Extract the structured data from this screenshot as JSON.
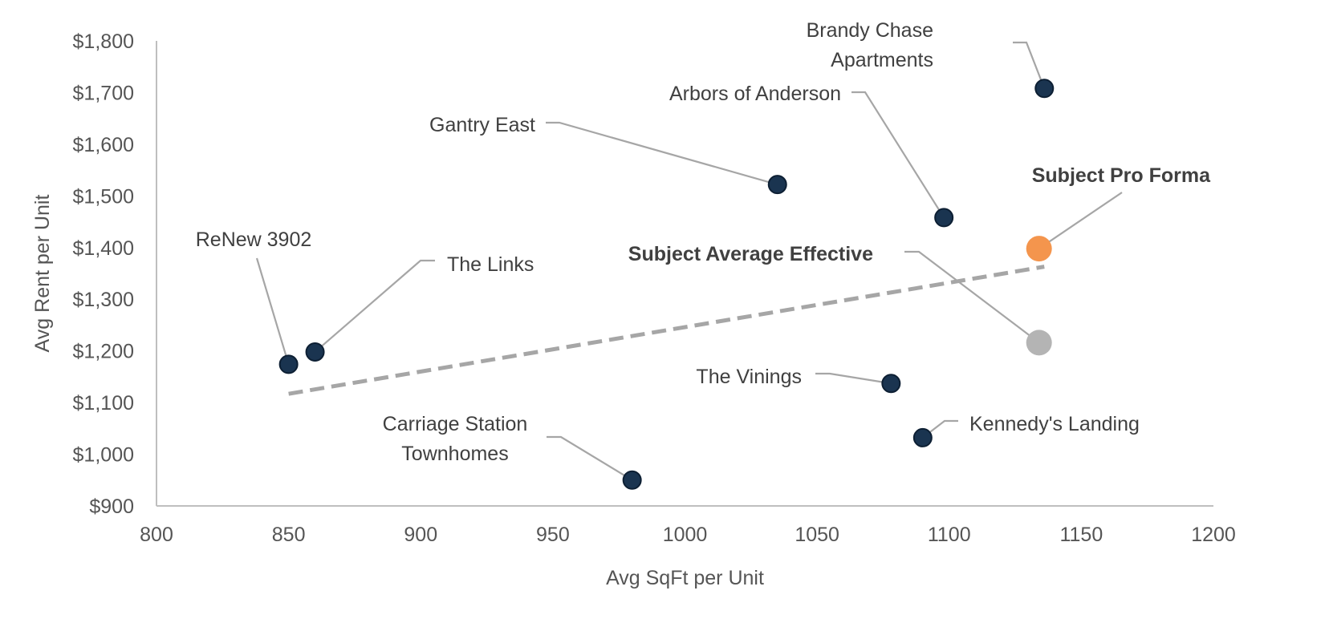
{
  "chart_data": {
    "type": "scatter",
    "title": "",
    "xlabel": "Avg SqFt per Unit",
    "ylabel": "Avg Rent per Unit",
    "xlim": [
      800,
      1200
    ],
    "ylim": [
      900,
      1800
    ],
    "x_ticks": [
      800,
      850,
      900,
      950,
      1000,
      1050,
      1100,
      1150,
      1200
    ],
    "y_ticks": [
      900,
      1000,
      1100,
      1200,
      1300,
      1400,
      1500,
      1600,
      1700,
      1800
    ],
    "y_tick_labels": [
      "$900",
      "$1,000",
      "$1,100",
      "$1,200",
      "$1,300",
      "$1,400",
      "$1,500",
      "$1,600",
      "$1,700",
      "$1,800"
    ],
    "grid": false,
    "points": [
      {
        "label": [
          "Brandy Chase",
          "Apartments"
        ],
        "x": 1136,
        "y": 1708,
        "color": "#1a3450",
        "bold": false,
        "large": false,
        "anchor": "end"
      },
      {
        "label": [
          "Arbors of Anderson"
        ],
        "x": 1098,
        "y": 1458,
        "color": "#1a3450",
        "bold": false,
        "large": false,
        "anchor": "end"
      },
      {
        "label": [
          "Gantry East"
        ],
        "x": 1035,
        "y": 1522,
        "color": "#1a3450",
        "bold": false,
        "large": false,
        "anchor": "end"
      },
      {
        "label": [
          "Subject Pro Forma"
        ],
        "x": 1134,
        "y": 1398,
        "color": "#f4954d",
        "bold": true,
        "large": true,
        "anchor": "end"
      },
      {
        "label": [
          "Subject Average Effective"
        ],
        "x": 1134,
        "y": 1216,
        "color": "#b4b4b4",
        "bold": true,
        "large": true,
        "anchor": "end"
      },
      {
        "label": [
          "ReNew 3902"
        ],
        "x": 850,
        "y": 1174,
        "color": "#1a3450",
        "bold": false,
        "large": false,
        "anchor": "middle"
      },
      {
        "label": [
          "The Links"
        ],
        "x": 860,
        "y": 1198,
        "color": "#1a3450",
        "bold": false,
        "large": false,
        "anchor": "start"
      },
      {
        "label": [
          "The Vinings"
        ],
        "x": 1078,
        "y": 1137,
        "color": "#1a3450",
        "bold": false,
        "large": false,
        "anchor": "end"
      },
      {
        "label": [
          "Kennedy's Landing"
        ],
        "x": 1090,
        "y": 1032,
        "color": "#1a3450",
        "bold": false,
        "large": false,
        "anchor": "start"
      },
      {
        "label": [
          "Carriage Station",
          "Townhomes"
        ],
        "x": 980,
        "y": 950,
        "color": "#1a3450",
        "bold": false,
        "large": false,
        "anchor": "middle"
      }
    ],
    "trendline": {
      "x": [
        850,
        1136
      ],
      "y": [
        1117,
        1363
      ],
      "color": "#a6a6a6",
      "style": "dashed"
    }
  }
}
